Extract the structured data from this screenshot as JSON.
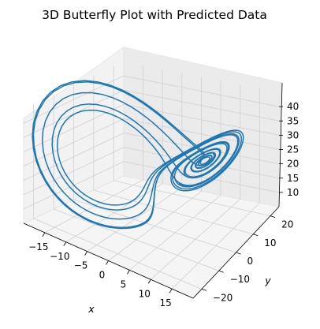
{
  "chart_data": {
    "type": "line",
    "title": "3D Butterfly Plot with Predicted Data",
    "xlabel": "x",
    "ylabel": "y",
    "zlabel": "",
    "series_color": "#1f77b4",
    "xlim": [
      -20,
      20
    ],
    "ylim": [
      -25,
      25
    ],
    "zlim": [
      5,
      45
    ],
    "x_ticks": [
      "−15",
      "−10",
      "−5",
      "0",
      "5",
      "10",
      "15"
    ],
    "y_ticks": [
      "−20",
      "−10",
      "0",
      "10",
      "20"
    ],
    "z_ticks": [
      "10",
      "15",
      "20",
      "25",
      "30",
      "35",
      "40"
    ],
    "grid": true,
    "curve": {
      "kind": "lorenz",
      "sigma": 10,
      "rho": 28,
      "beta": 2.667,
      "start": [
        4,
        4,
        20
      ],
      "dt": 0.01,
      "steps": 1500
    }
  }
}
